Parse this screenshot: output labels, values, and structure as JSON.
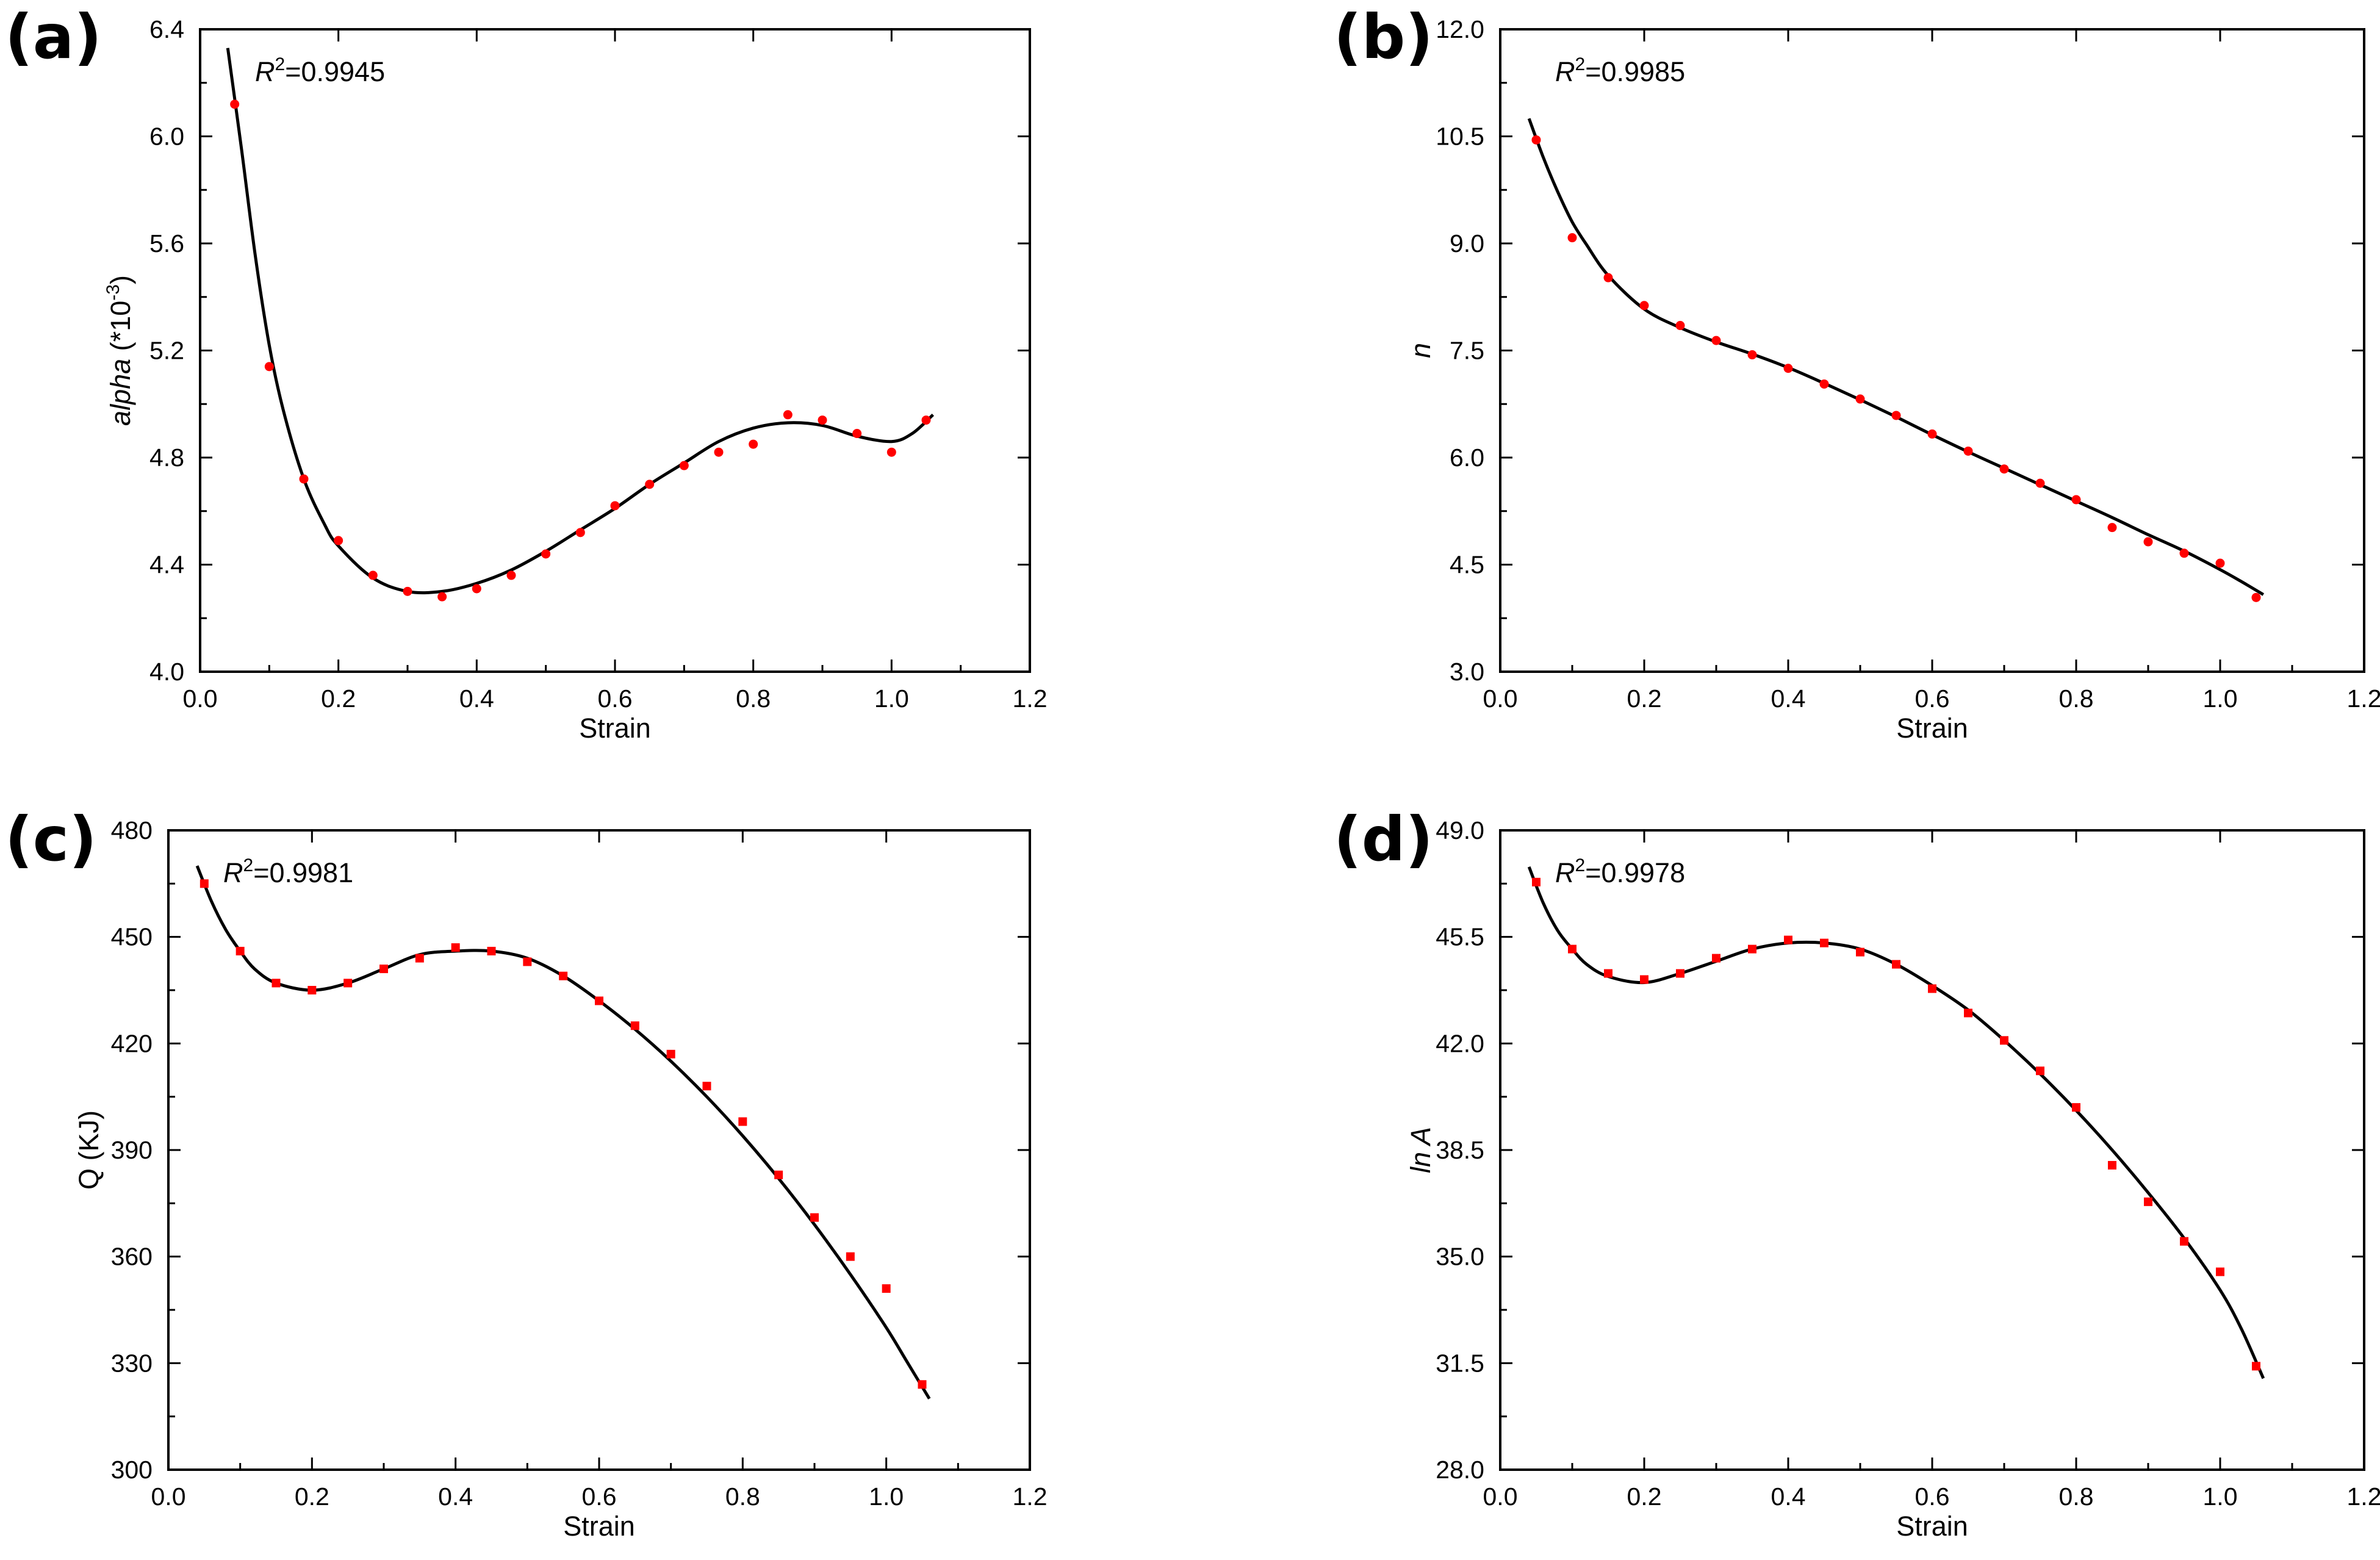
{
  "chart_data": [
    {
      "type": "scatter",
      "panel": "(a)",
      "r2_label": "R",
      "r2_sup": "2",
      "r2_value": "=0.9945",
      "xlabel": "Strain",
      "ylabel_italic": "alpha",
      "ylabel_rest": " (*10",
      "ylabel_sup": "-3",
      "ylabel_end": ")",
      "xlim": [
        0.0,
        1.2
      ],
      "ylim": [
        4.0,
        6.4
      ],
      "xticks": [
        "0.0",
        "0.2",
        "0.4",
        "0.6",
        "0.8",
        "1.0",
        "1.2"
      ],
      "yticks": [
        "4.0",
        "4.4",
        "4.8",
        "5.2",
        "5.6",
        "6.0",
        "6.4"
      ],
      "points": {
        "x": [
          0.05,
          0.1,
          0.15,
          0.2,
          0.25,
          0.3,
          0.35,
          0.4,
          0.45,
          0.5,
          0.55,
          0.6,
          0.65,
          0.7,
          0.75,
          0.8,
          0.85,
          0.9,
          0.95,
          1.0,
          1.05
        ],
        "y": [
          6.12,
          5.14,
          4.72,
          4.49,
          4.36,
          4.3,
          4.28,
          4.31,
          4.36,
          4.44,
          4.52,
          4.62,
          4.7,
          4.77,
          4.82,
          4.85,
          4.96,
          4.94,
          4.89,
          4.82,
          4.94
        ]
      },
      "fit_curve": {
        "x": [
          0.04,
          0.06,
          0.08,
          0.1,
          0.12,
          0.15,
          0.18,
          0.2,
          0.25,
          0.3,
          0.35,
          0.4,
          0.45,
          0.5,
          0.55,
          0.6,
          0.65,
          0.7,
          0.75,
          0.8,
          0.85,
          0.9,
          0.95,
          1.0,
          1.03,
          1.06
        ],
        "y": [
          6.33,
          5.95,
          5.55,
          5.22,
          4.98,
          4.72,
          4.55,
          4.47,
          4.35,
          4.3,
          4.3,
          4.33,
          4.38,
          4.45,
          4.53,
          4.61,
          4.7,
          4.78,
          4.86,
          4.91,
          4.93,
          4.92,
          4.88,
          4.86,
          4.89,
          4.96
        ]
      },
      "marker_color": "#ff0000",
      "line_color": "#000000"
    },
    {
      "type": "scatter",
      "panel": "(b)",
      "r2_label": "R",
      "r2_sup": "2",
      "r2_value": "=0.9985",
      "xlabel": "Strain",
      "ylabel_italic": "n",
      "xlim": [
        0.0,
        1.2
      ],
      "ylim": [
        3.0,
        12.0
      ],
      "xticks": [
        "0.0",
        "0.2",
        "0.4",
        "0.6",
        "0.8",
        "1.0",
        "1.2"
      ],
      "yticks": [
        "3.0",
        "4.5",
        "6.0",
        "7.5",
        "9.0",
        "10.5",
        "12.0"
      ],
      "points": {
        "x": [
          0.05,
          0.1,
          0.15,
          0.2,
          0.25,
          0.3,
          0.35,
          0.4,
          0.45,
          0.5,
          0.55,
          0.6,
          0.65,
          0.7,
          0.75,
          0.8,
          0.85,
          0.9,
          0.95,
          1.0,
          1.05
        ],
        "y": [
          10.45,
          9.08,
          8.52,
          8.13,
          7.85,
          7.64,
          7.44,
          7.25,
          7.03,
          6.82,
          6.59,
          6.33,
          6.09,
          5.84,
          5.64,
          5.41,
          5.02,
          4.82,
          4.66,
          4.52,
          4.04
        ]
      },
      "fit_curve": {
        "x": [
          0.04,
          0.06,
          0.08,
          0.1,
          0.12,
          0.15,
          0.2,
          0.25,
          0.3,
          0.35,
          0.4,
          0.45,
          0.5,
          0.55,
          0.6,
          0.65,
          0.7,
          0.75,
          0.8,
          0.85,
          0.9,
          0.95,
          1.0,
          1.03,
          1.06
        ],
        "y": [
          10.75,
          10.2,
          9.72,
          9.3,
          8.98,
          8.55,
          8.08,
          7.82,
          7.62,
          7.45,
          7.26,
          7.04,
          6.81,
          6.57,
          6.32,
          6.08,
          5.85,
          5.62,
          5.39,
          5.16,
          4.92,
          4.69,
          4.43,
          4.26,
          4.08
        ]
      },
      "marker_color": "#ff0000",
      "line_color": "#000000"
    },
    {
      "type": "scatter",
      "panel": "(c)",
      "r2_label": "R",
      "r2_sup": "2",
      "r2_value": "=0.9981",
      "xlabel": "Strain",
      "ylabel_plain": "Q (KJ)",
      "xlim": [
        0.0,
        1.2
      ],
      "ylim": [
        300,
        480
      ],
      "xticks": [
        "0.0",
        "0.2",
        "0.4",
        "0.6",
        "0.8",
        "1.0",
        "1.2"
      ],
      "yticks": [
        "300",
        "330",
        "360",
        "390",
        "420",
        "450",
        "480"
      ],
      "points": {
        "x": [
          0.05,
          0.1,
          0.15,
          0.2,
          0.25,
          0.3,
          0.35,
          0.4,
          0.45,
          0.5,
          0.55,
          0.6,
          0.65,
          0.7,
          0.75,
          0.8,
          0.85,
          0.9,
          0.95,
          1.0,
          1.05
        ],
        "y": [
          465,
          446,
          437,
          435,
          437,
          441,
          444,
          447,
          446,
          443,
          439,
          432,
          425,
          417,
          408,
          398,
          383,
          371,
          360,
          351,
          324
        ]
      },
      "fit_curve": {
        "x": [
          0.04,
          0.06,
          0.08,
          0.1,
          0.12,
          0.15,
          0.2,
          0.25,
          0.3,
          0.35,
          0.4,
          0.45,
          0.5,
          0.55,
          0.6,
          0.65,
          0.7,
          0.75,
          0.8,
          0.85,
          0.9,
          0.95,
          1.0,
          1.03,
          1.06
        ],
        "y": [
          470,
          460,
          452,
          446,
          441,
          437,
          435,
          437,
          441,
          445,
          446,
          446,
          444,
          439,
          432,
          424,
          415,
          405,
          394,
          382,
          369,
          355,
          340,
          330,
          320
        ]
      },
      "marker_color": "#ff0000",
      "line_color": "#000000"
    },
    {
      "type": "scatter",
      "panel": "(d)",
      "r2_label": "R",
      "r2_sup": "2",
      "r2_value": "=0.9978",
      "xlabel": "Strain",
      "ylabel_italic": "ln A",
      "xlim": [
        0.0,
        1.2
      ],
      "ylim": [
        28.0,
        49.0
      ],
      "xticks": [
        "0.0",
        "0.2",
        "0.4",
        "0.6",
        "0.8",
        "1.0",
        "1.2"
      ],
      "yticks": [
        "28.0",
        "31.5",
        "35.0",
        "38.5",
        "42.0",
        "45.5",
        "49.0"
      ],
      "points": {
        "x": [
          0.05,
          0.1,
          0.15,
          0.2,
          0.25,
          0.3,
          0.35,
          0.4,
          0.45,
          0.5,
          0.55,
          0.6,
          0.65,
          0.7,
          0.75,
          0.8,
          0.85,
          0.9,
          0.95,
          1.0,
          1.05
        ],
        "y": [
          47.3,
          45.1,
          44.3,
          44.1,
          44.3,
          44.8,
          45.1,
          45.4,
          45.3,
          45.0,
          44.6,
          43.8,
          43.0,
          42.1,
          41.1,
          39.9,
          38.0,
          36.8,
          35.5,
          34.5,
          31.4
        ]
      },
      "fit_curve": {
        "x": [
          0.04,
          0.06,
          0.08,
          0.1,
          0.12,
          0.15,
          0.2,
          0.25,
          0.3,
          0.35,
          0.4,
          0.45,
          0.5,
          0.55,
          0.6,
          0.65,
          0.7,
          0.75,
          0.8,
          0.85,
          0.9,
          0.95,
          1.0,
          1.03,
          1.06
        ],
        "y": [
          47.8,
          46.6,
          45.7,
          45.1,
          44.6,
          44.2,
          44.0,
          44.3,
          44.7,
          45.1,
          45.3,
          45.3,
          45.1,
          44.6,
          43.9,
          43.1,
          42.1,
          41.0,
          39.8,
          38.5,
          37.1,
          35.6,
          33.9,
          32.6,
          31.0
        ]
      },
      "marker_color": "#ff0000",
      "line_color": "#000000"
    }
  ]
}
